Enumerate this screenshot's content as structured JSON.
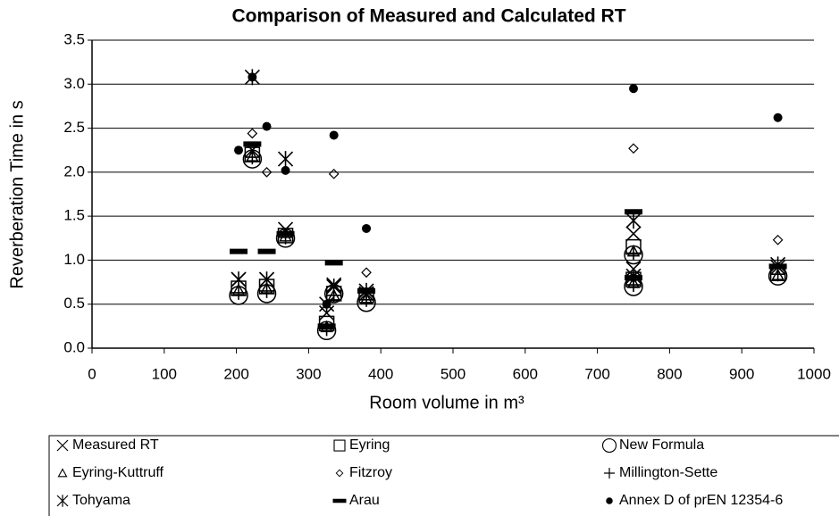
{
  "chart_data": {
    "type": "scatter",
    "title": "Comparison of Measured and Calculated RT",
    "xlabel": "Room volume in m³",
    "ylabel": "Reverberation Time in s",
    "x": [
      203,
      222,
      242,
      268,
      325,
      335,
      380,
      750,
      750,
      950
    ],
    "series": [
      {
        "name": "Measured RT",
        "marker": "x",
        "color": "#000000",
        "values": [
          0.78,
          2.25,
          0.78,
          1.35,
          0.4,
          0.72,
          0.62,
          0.9,
          1.3,
          0.92
        ]
      },
      {
        "name": "Eyring",
        "marker": "square",
        "color": "#000000",
        "values": [
          0.68,
          2.2,
          0.7,
          1.28,
          0.28,
          0.62,
          0.6,
          0.78,
          1.15,
          0.85
        ]
      },
      {
        "name": "New Formula",
        "marker": "circle",
        "color": "#000000",
        "values": [
          0.6,
          2.15,
          0.62,
          1.25,
          0.2,
          0.62,
          0.52,
          0.7,
          1.06,
          0.82
        ]
      },
      {
        "name": "Eyring-Kuttruff",
        "marker": "triangle",
        "color": "#000000",
        "values": [
          0.66,
          2.18,
          0.68,
          1.27,
          0.24,
          0.6,
          0.56,
          0.74,
          1.1,
          0.83
        ]
      },
      {
        "name": "Fitzroy",
        "marker": "diamond",
        "color": "#000000",
        "values": [
          null,
          2.44,
          2.0,
          null,
          null,
          1.98,
          0.86,
          null,
          2.27,
          1.23
        ]
      },
      {
        "name": "Millington-Sette",
        "marker": "plus",
        "color": "#000000",
        "values": [
          0.63,
          2.17,
          0.65,
          1.26,
          0.22,
          0.6,
          0.55,
          0.72,
          1.08,
          0.84
        ]
      },
      {
        "name": "Tohyama",
        "marker": "asterisk",
        "color": "#000000",
        "values": [
          0.78,
          3.08,
          0.78,
          2.15,
          0.5,
          0.7,
          0.65,
          0.82,
          1.45,
          0.95
        ]
      },
      {
        "name": "Arau",
        "marker": "dash",
        "color": "#000000",
        "values": [
          1.1,
          2.32,
          1.1,
          1.3,
          0.25,
          0.97,
          0.65,
          0.8,
          1.55,
          0.93
        ]
      },
      {
        "name": "Annex D of prEN 12354-6",
        "marker": "dot",
        "color": "#000000",
        "values": [
          2.25,
          3.08,
          2.52,
          2.02,
          0.5,
          2.42,
          1.36,
          0.8,
          2.95,
          2.62
        ]
      }
    ],
    "xlim": [
      0,
      1000
    ],
    "xticks": [
      0,
      100,
      200,
      300,
      400,
      500,
      600,
      700,
      800,
      900,
      1000
    ],
    "ylim": [
      0,
      3.5
    ],
    "yticks": [
      {
        "value": 0,
        "label": "0.0"
      },
      0.5,
      {
        "value": 1,
        "label": "1.0"
      },
      1.5,
      {
        "value": 2,
        "label": "2.0"
      },
      2.5,
      {
        "value": 3,
        "label": "3.0"
      },
      3.5
    ],
    "grid": true,
    "legend": "bottom"
  }
}
